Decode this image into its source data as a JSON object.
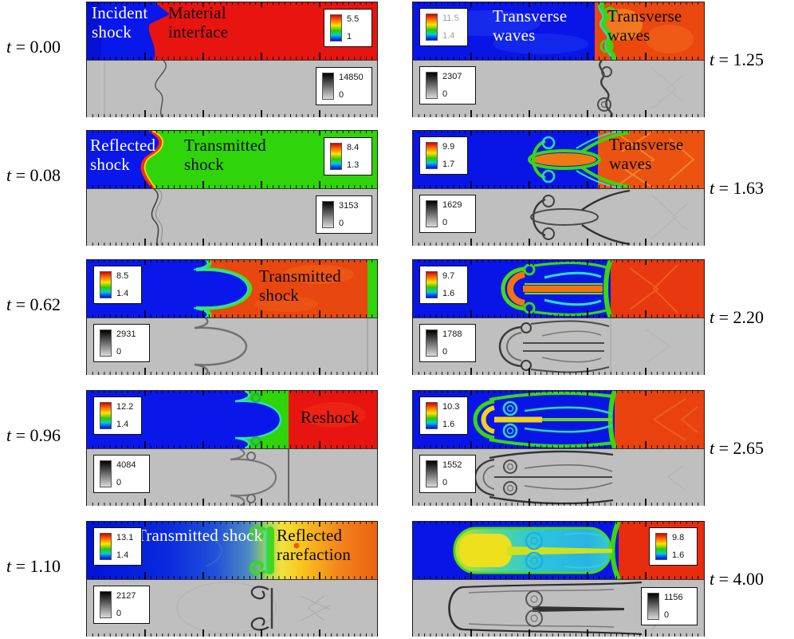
{
  "figure_type": "CFD shock-interface simulation figure: density fields (rainbow) over numerical schlieren (grayscale)",
  "panels": {
    "L1": {
      "time_var": "t",
      "time_eq": " = 0.00",
      "ann1": "Incident shock",
      "ann2": "Material interface",
      "cmax": "5.5",
      "cmin": "1",
      "gmax": "14850",
      "gmin": "0"
    },
    "L2": {
      "time_var": "t",
      "time_eq": " = 0.08",
      "ann1": "Reflected shock",
      "ann2": "Transmitted shock",
      "cmax": "8.4",
      "cmin": "1.3",
      "gmax": "3153",
      "gmin": "0"
    },
    "L3": {
      "time_var": "t",
      "time_eq": " = 0.62",
      "ann1": "Transmitted shock",
      "cmax": "8.5",
      "cmin": "1.4",
      "gmax": "2931",
      "gmin": "0"
    },
    "L4": {
      "time_var": "t",
      "time_eq": " = 0.96",
      "ann1": "Reshock",
      "cmax": "12.2",
      "cmin": "1.4",
      "gmax": "4084",
      "gmin": "0"
    },
    "L5": {
      "time_var": "t",
      "time_eq": " = 1.10",
      "ann1": "Transmitted shock",
      "ann2": "Reflected rarefaction",
      "cmax": "13.1",
      "cmin": "1.4",
      "gmax": "2127",
      "gmin": "0"
    },
    "R1": {
      "time_var": "t",
      "time_eq": " = 1.25",
      "ann1": "Transverse waves",
      "ann2": "Transverse waves",
      "cmax": "11.5",
      "cmin": "1.4",
      "gmax": "2307",
      "gmin": "0"
    },
    "R2": {
      "time_var": "t",
      "time_eq": " = 1.63",
      "ann1": "Transverse waves",
      "cmax": "9.9",
      "cmin": "1.7",
      "gmax": "1629",
      "gmin": "0"
    },
    "R3": {
      "time_var": "t",
      "time_eq": " = 2.20",
      "cmax": "9.7",
      "cmin": "1.6",
      "gmax": "1788",
      "gmin": "0"
    },
    "R4": {
      "time_var": "t",
      "time_eq": " = 2.65",
      "cmax": "10.3",
      "cmin": "1.6",
      "gmax": "1552",
      "gmin": "0"
    },
    "R5": {
      "time_var": "t",
      "time_eq": " = 4.00",
      "cmax": "9.8",
      "cmin": "1.6",
      "gmax": "1156",
      "gmin": "0"
    }
  },
  "colors": {
    "blue": "#0915e6",
    "red": "#e81410",
    "green": "#2fd40a",
    "orange": "#ec5310",
    "schlieren_bg": "#bfbfbf"
  },
  "chart_data": [
    {
      "type": "heatmap",
      "panel": "row1-left",
      "t": 0.0,
      "density_range": [
        1,
        5.5
      ],
      "schlieren_range": [
        0,
        14850
      ],
      "annotations": [
        "Incident shock",
        "Material interface"
      ]
    },
    {
      "type": "heatmap",
      "panel": "row2-left",
      "t": 0.08,
      "density_range": [
        1.3,
        8.4
      ],
      "schlieren_range": [
        0,
        3153
      ],
      "annotations": [
        "Reflected shock",
        "Transmitted shock"
      ]
    },
    {
      "type": "heatmap",
      "panel": "row3-left",
      "t": 0.62,
      "density_range": [
        1.4,
        8.5
      ],
      "schlieren_range": [
        0,
        2931
      ],
      "annotations": [
        "Transmitted shock"
      ]
    },
    {
      "type": "heatmap",
      "panel": "row4-left",
      "t": 0.96,
      "density_range": [
        1.4,
        12.2
      ],
      "schlieren_range": [
        0,
        4084
      ],
      "annotations": [
        "Reshock"
      ]
    },
    {
      "type": "heatmap",
      "panel": "row5-left",
      "t": 1.1,
      "density_range": [
        1.4,
        13.1
      ],
      "schlieren_range": [
        0,
        2127
      ],
      "annotations": [
        "Transmitted shock",
        "Reflected rarefaction"
      ]
    },
    {
      "type": "heatmap",
      "panel": "row1-right",
      "t": 1.25,
      "density_range": [
        1.4,
        11.5
      ],
      "schlieren_range": [
        0,
        2307
      ],
      "annotations": [
        "Transverse waves",
        "Transverse waves"
      ]
    },
    {
      "type": "heatmap",
      "panel": "row2-right",
      "t": 1.63,
      "density_range": [
        1.7,
        9.9
      ],
      "schlieren_range": [
        0,
        1629
      ],
      "annotations": [
        "Transverse waves"
      ]
    },
    {
      "type": "heatmap",
      "panel": "row3-right",
      "t": 2.2,
      "density_range": [
        1.6,
        9.7
      ],
      "schlieren_range": [
        0,
        1788
      ],
      "annotations": []
    },
    {
      "type": "heatmap",
      "panel": "row4-right",
      "t": 2.65,
      "density_range": [
        1.6,
        10.3
      ],
      "schlieren_range": [
        0,
        1552
      ],
      "annotations": []
    },
    {
      "type": "heatmap",
      "panel": "row5-right",
      "t": 4.0,
      "density_range": [
        1.6,
        9.8
      ],
      "schlieren_range": [
        0,
        1156
      ],
      "annotations": []
    }
  ]
}
